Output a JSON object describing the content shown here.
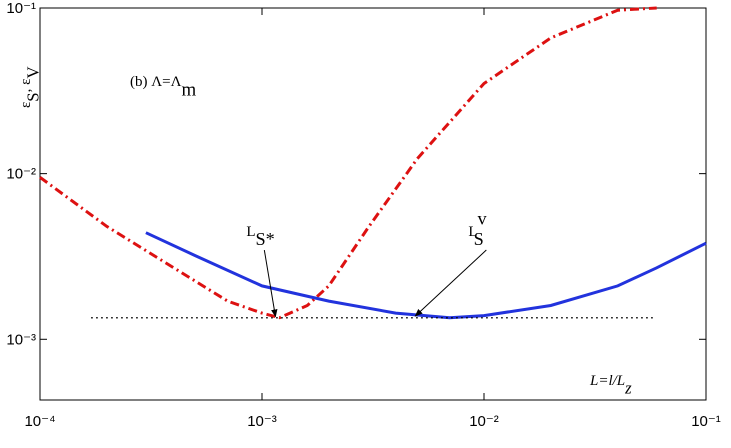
{
  "chart_data": {
    "type": "line",
    "xscale": "log",
    "yscale": "log",
    "xlim": [
      0.0001,
      0.1
    ],
    "ylim": [
      0.00043,
      0.1
    ],
    "xticks": [
      {
        "value": 0.0001,
        "label": "10⁻⁴"
      },
      {
        "value": 0.001,
        "label": "10⁻³"
      },
      {
        "value": 0.01,
        "label": "10⁻²"
      },
      {
        "value": 0.1,
        "label": "10⁻¹"
      }
    ],
    "yticks": [
      {
        "value": 0.001,
        "label": "10⁻³"
      },
      {
        "value": 0.01,
        "label": "10⁻²"
      },
      {
        "value": 0.1,
        "label": "10⁻¹"
      }
    ],
    "ylabel": [
      {
        "text": "ε",
        "shift": null
      },
      {
        "text": "S",
        "shift": "sub"
      },
      {
        "text": ", ε",
        "shift": null
      },
      {
        "text": "V",
        "shift": "sub"
      }
    ],
    "xlabel": [
      {
        "text": "L=l/L",
        "shift": null
      },
      {
        "text": "z",
        "shift": "sub"
      }
    ],
    "title": [
      {
        "text": "(b) Λ=Λ",
        "shift": null
      },
      {
        "text": "m",
        "shift": "sub"
      }
    ],
    "annotations": [
      {
        "parts": [
          {
            "text": "L",
            "shift": null
          },
          {
            "text": "S*",
            "shift": "sub"
          }
        ],
        "x": 0.00085,
        "y": 0.0042,
        "arrow_to": [
          0.00115,
          0.00137
        ]
      },
      {
        "parts": [
          {
            "text": "L",
            "shift": null
          },
          {
            "text": "v",
            "shift": "sup"
          },
          {
            "text": "S",
            "shift": "sub"
          }
        ],
        "x": 0.0085,
        "y": 0.0042,
        "arrow_to": [
          0.0049,
          0.00138
        ]
      }
    ],
    "series": [
      {
        "color": "#dd1111",
        "style": "dashdot",
        "x": [
          0.0001,
          0.0002,
          0.0004,
          0.0007,
          0.001,
          0.0012,
          0.0016,
          0.002,
          0.003,
          0.005,
          0.01,
          0.02,
          0.04,
          0.06
        ],
        "values": [
          0.0095,
          0.0048,
          0.0027,
          0.0017,
          0.00144,
          0.00135,
          0.0016,
          0.0021,
          0.0047,
          0.0123,
          0.035,
          0.066,
          0.097,
          0.1
        ]
      },
      {
        "color": "#2233dd",
        "style": "solid",
        "x": [
          0.0003,
          0.0005,
          0.001,
          0.002,
          0.004,
          0.007,
          0.01,
          0.02,
          0.04,
          0.06,
          0.1
        ],
        "values": [
          0.0044,
          0.0032,
          0.0021,
          0.0017,
          0.00144,
          0.00135,
          0.00139,
          0.0016,
          0.0021,
          0.0027,
          0.0038
        ]
      },
      {
        "color": "#000000",
        "style": "dotted",
        "x": [
          0.00017,
          0.058
        ],
        "values": [
          0.00135,
          0.00135
        ]
      }
    ]
  }
}
